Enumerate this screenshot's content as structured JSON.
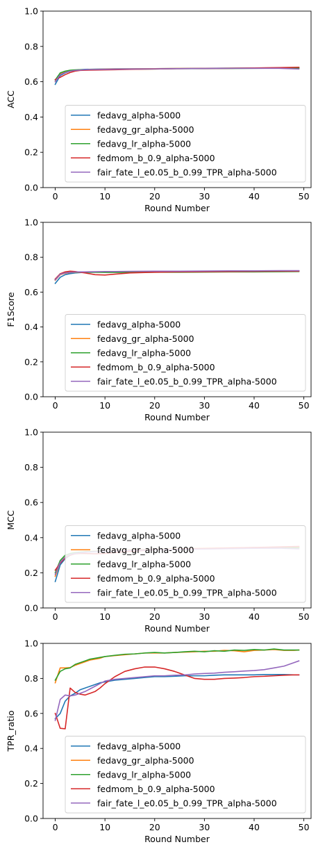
{
  "colors": {
    "fedavg_alpha-5000": "#1f77b4",
    "fedavg_gr_alpha-5000": "#ff7f0e",
    "fedavg_lr_alpha-5000": "#2ca02c",
    "fedmom_b_0.9_alpha-5000": "#d62728",
    "fair_fate_l_e0.05_b_0.99_TPR_alpha-5000": "#9467bd"
  },
  "chart_data": [
    {
      "type": "line",
      "title": "",
      "xlabel": "Round Number",
      "ylabel": "ACC",
      "xlim": [
        -2.45,
        51.45
      ],
      "ylim": [
        0,
        1
      ],
      "xticks": [
        "0",
        "10",
        "20",
        "30",
        "40",
        "50"
      ],
      "yticks": [
        "0.0",
        "0.2",
        "0.4",
        "0.6",
        "0.8",
        "1.0"
      ],
      "grid": false,
      "legend": "lower-right",
      "series": [
        {
          "name": "fedavg_alpha-5000",
          "x": [
            0,
            1,
            2,
            3,
            4,
            5,
            6,
            8,
            10,
            12,
            15,
            20,
            25,
            30,
            35,
            40,
            45,
            49
          ],
          "y": [
            0.585,
            0.635,
            0.65,
            0.66,
            0.665,
            0.668,
            0.67,
            0.671,
            0.672,
            0.673,
            0.673,
            0.674,
            0.675,
            0.676,
            0.677,
            0.678,
            0.678,
            0.678
          ]
        },
        {
          "name": "fedavg_gr_alpha-5000",
          "x": [
            0,
            1,
            2,
            3,
            4,
            5,
            6,
            8,
            10,
            12,
            15,
            20,
            25,
            30,
            35,
            40,
            45,
            49
          ],
          "y": [
            0.6,
            0.645,
            0.655,
            0.662,
            0.665,
            0.667,
            0.668,
            0.67,
            0.671,
            0.672,
            0.673,
            0.674,
            0.675,
            0.675,
            0.677,
            0.677,
            0.678,
            0.678
          ]
        },
        {
          "name": "fedavg_lr_alpha-5000",
          "x": [
            0,
            1,
            2,
            3,
            4,
            5,
            6,
            8,
            10,
            12,
            15,
            20,
            25,
            30,
            35,
            40,
            45,
            49
          ],
          "y": [
            0.61,
            0.65,
            0.66,
            0.665,
            0.667,
            0.668,
            0.668,
            0.669,
            0.669,
            0.67,
            0.671,
            0.672,
            0.674,
            0.674,
            0.675,
            0.676,
            0.677,
            0.677
          ]
        },
        {
          "name": "fedmom_b_0.9_alpha-5000",
          "x": [
            0,
            1,
            2,
            3,
            4,
            5,
            6,
            8,
            10,
            12,
            15,
            20,
            25,
            30,
            35,
            40,
            45,
            49
          ],
          "y": [
            0.612,
            0.625,
            0.64,
            0.652,
            0.66,
            0.664,
            0.665,
            0.666,
            0.667,
            0.668,
            0.67,
            0.672,
            0.674,
            0.675,
            0.676,
            0.678,
            0.68,
            0.682
          ]
        },
        {
          "name": "fair_fate_l_e0.05_b_0.99_TPR_alpha-5000",
          "x": [
            0,
            1,
            2,
            3,
            4,
            5,
            6,
            8,
            10,
            12,
            15,
            20,
            25,
            30,
            35,
            40,
            45,
            49
          ],
          "y": [
            0.6,
            0.64,
            0.652,
            0.66,
            0.664,
            0.666,
            0.668,
            0.669,
            0.67,
            0.671,
            0.672,
            0.673,
            0.674,
            0.675,
            0.676,
            0.676,
            0.676,
            0.672
          ]
        }
      ]
    },
    {
      "type": "line",
      "title": "",
      "xlabel": "Round Number",
      "ylabel": "F1Score",
      "xlim": [
        -2.45,
        51.45
      ],
      "ylim": [
        0,
        1
      ],
      "xticks": [
        "0",
        "10",
        "20",
        "30",
        "40",
        "50"
      ],
      "yticks": [
        "0.0",
        "0.2",
        "0.4",
        "0.6",
        "0.8",
        "1.0"
      ],
      "grid": false,
      "legend": "lower-right",
      "series": [
        {
          "name": "fedavg_alpha-5000",
          "x": [
            0,
            1,
            2,
            3,
            4,
            5,
            6,
            8,
            10,
            12,
            15,
            20,
            25,
            30,
            35,
            40,
            45,
            49
          ],
          "y": [
            0.65,
            0.685,
            0.7,
            0.706,
            0.71,
            0.712,
            0.713,
            0.714,
            0.715,
            0.715,
            0.716,
            0.716,
            0.717,
            0.718,
            0.719,
            0.72,
            0.721,
            0.722
          ]
        },
        {
          "name": "fedavg_gr_alpha-5000",
          "x": [
            0,
            1,
            2,
            3,
            4,
            5,
            6,
            8,
            10,
            12,
            15,
            20,
            25,
            30,
            35,
            40,
            45,
            49
          ],
          "y": [
            0.668,
            0.7,
            0.708,
            0.712,
            0.713,
            0.714,
            0.714,
            0.715,
            0.715,
            0.716,
            0.716,
            0.717,
            0.717,
            0.718,
            0.719,
            0.72,
            0.721,
            0.721
          ]
        },
        {
          "name": "fedavg_lr_alpha-5000",
          "x": [
            0,
            1,
            2,
            3,
            4,
            5,
            6,
            8,
            10,
            12,
            15,
            20,
            25,
            30,
            35,
            40,
            45,
            49
          ],
          "y": [
            0.672,
            0.705,
            0.712,
            0.713,
            0.714,
            0.714,
            0.714,
            0.714,
            0.713,
            0.713,
            0.713,
            0.714,
            0.714,
            0.715,
            0.716,
            0.716,
            0.717,
            0.718
          ]
        },
        {
          "name": "fedmom_b_0.9_alpha-5000",
          "x": [
            0,
            1,
            2,
            3,
            4,
            5,
            6,
            8,
            10,
            12,
            15,
            20,
            25,
            30,
            35,
            40,
            45,
            49
          ],
          "y": [
            0.675,
            0.705,
            0.716,
            0.72,
            0.718,
            0.714,
            0.71,
            0.7,
            0.698,
            0.703,
            0.71,
            0.714,
            0.716,
            0.717,
            0.718,
            0.719,
            0.72,
            0.72
          ]
        },
        {
          "name": "fair_fate_l_e0.05_b_0.99_TPR_alpha-5000",
          "x": [
            0,
            1,
            2,
            3,
            4,
            5,
            6,
            8,
            10,
            12,
            15,
            20,
            25,
            30,
            35,
            40,
            45,
            49
          ],
          "y": [
            0.67,
            0.702,
            0.71,
            0.713,
            0.715,
            0.716,
            0.716,
            0.717,
            0.718,
            0.718,
            0.719,
            0.72,
            0.72,
            0.721,
            0.722,
            0.722,
            0.723,
            0.723
          ]
        }
      ]
    },
    {
      "type": "line",
      "title": "",
      "xlabel": "Round Number",
      "ylabel": "MCC",
      "xlim": [
        -2.45,
        51.45
      ],
      "ylim": [
        0,
        1
      ],
      "xticks": [
        "0",
        "10",
        "20",
        "30",
        "40",
        "50"
      ],
      "yticks": [
        "0.0",
        "0.2",
        "0.4",
        "0.6",
        "0.8",
        "1.0"
      ],
      "grid": false,
      "legend": "lower-right",
      "series": [
        {
          "name": "fedavg_alpha-5000",
          "x": [
            0,
            1,
            2,
            3,
            4,
            5,
            6,
            8,
            10,
            12,
            15,
            20,
            25,
            30,
            35,
            40,
            45,
            49
          ],
          "y": [
            0.15,
            0.245,
            0.28,
            0.3,
            0.31,
            0.315,
            0.318,
            0.322,
            0.325,
            0.327,
            0.33,
            0.333,
            0.336,
            0.338,
            0.34,
            0.342,
            0.343,
            0.344
          ]
        },
        {
          "name": "fedavg_gr_alpha-5000",
          "x": [
            0,
            1,
            2,
            3,
            4,
            5,
            6,
            8,
            10,
            12,
            15,
            20,
            25,
            30,
            35,
            40,
            45,
            49
          ],
          "y": [
            0.18,
            0.26,
            0.29,
            0.305,
            0.312,
            0.316,
            0.32,
            0.323,
            0.326,
            0.328,
            0.331,
            0.334,
            0.336,
            0.339,
            0.341,
            0.343,
            0.345,
            0.346
          ]
        },
        {
          "name": "fedavg_lr_alpha-5000",
          "x": [
            0,
            1,
            2,
            3,
            4,
            5,
            6,
            8,
            10,
            12,
            15,
            20,
            25,
            30,
            35,
            40,
            45,
            49
          ],
          "y": [
            0.2,
            0.27,
            0.3,
            0.31,
            0.315,
            0.318,
            0.32,
            0.322,
            0.324,
            0.326,
            0.328,
            0.331,
            0.334,
            0.336,
            0.338,
            0.34,
            0.341,
            0.342
          ]
        },
        {
          "name": "fedmom_b_0.9_alpha-5000",
          "x": [
            0,
            1,
            2,
            3,
            4,
            5,
            6,
            8,
            10,
            12,
            15,
            20,
            25,
            30,
            35,
            40,
            45,
            49
          ],
          "y": [
            0.215,
            0.255,
            0.285,
            0.3,
            0.308,
            0.31,
            0.31,
            0.308,
            0.31,
            0.315,
            0.322,
            0.33,
            0.335,
            0.338,
            0.341,
            0.344,
            0.347,
            0.35
          ]
        },
        {
          "name": "fair_fate_l_e0.05_b_0.99_TPR_alpha-5000",
          "x": [
            0,
            1,
            2,
            3,
            4,
            5,
            6,
            8,
            10,
            12,
            15,
            20,
            25,
            30,
            35,
            40,
            45,
            49
          ],
          "y": [
            0.19,
            0.26,
            0.29,
            0.304,
            0.31,
            0.314,
            0.317,
            0.32,
            0.323,
            0.325,
            0.328,
            0.331,
            0.333,
            0.335,
            0.337,
            0.339,
            0.34,
            0.336
          ]
        }
      ]
    },
    {
      "type": "line",
      "title": "",
      "xlabel": "Round Number",
      "ylabel": "TPR_ratio",
      "xlim": [
        -2.45,
        51.45
      ],
      "ylim": [
        0,
        1
      ],
      "xticks": [
        "0",
        "10",
        "20",
        "30",
        "40",
        "50"
      ],
      "yticks": [
        "0.0",
        "0.2",
        "0.4",
        "0.6",
        "0.8",
        "1.0"
      ],
      "grid": false,
      "legend": "lower-right",
      "series": [
        {
          "name": "fedavg_alpha-5000",
          "x": [
            0,
            1,
            2,
            3,
            4,
            5,
            6,
            7,
            8,
            9,
            10,
            12,
            14,
            16,
            18,
            20,
            22,
            24,
            26,
            28,
            30,
            32,
            34,
            36,
            38,
            40,
            42,
            44,
            46,
            48,
            49
          ],
          "y": [
            0.57,
            0.6,
            0.67,
            0.7,
            0.715,
            0.735,
            0.745,
            0.755,
            0.765,
            0.775,
            0.78,
            0.79,
            0.795,
            0.8,
            0.805,
            0.81,
            0.81,
            0.812,
            0.815,
            0.815,
            0.815,
            0.818,
            0.82,
            0.82,
            0.82,
            0.82,
            0.822,
            0.822,
            0.822,
            0.82,
            0.82
          ]
        },
        {
          "name": "fedavg_gr_alpha-5000",
          "x": [
            0,
            1,
            2,
            3,
            4,
            5,
            6,
            7,
            8,
            9,
            10,
            12,
            14,
            16,
            18,
            20,
            22,
            24,
            26,
            28,
            30,
            32,
            34,
            36,
            38,
            40,
            42,
            44,
            46,
            48,
            49
          ],
          "y": [
            0.775,
            0.86,
            0.86,
            0.862,
            0.875,
            0.885,
            0.895,
            0.905,
            0.91,
            0.915,
            0.925,
            0.93,
            0.935,
            0.94,
            0.945,
            0.945,
            0.945,
            0.948,
            0.95,
            0.952,
            0.955,
            0.955,
            0.96,
            0.958,
            0.952,
            0.96,
            0.962,
            0.965,
            0.96,
            0.96,
            0.962
          ]
        },
        {
          "name": "fedavg_lr_alpha-5000",
          "x": [
            0,
            1,
            2,
            3,
            4,
            5,
            6,
            7,
            8,
            9,
            10,
            12,
            14,
            16,
            18,
            20,
            22,
            24,
            26,
            28,
            30,
            32,
            34,
            36,
            38,
            40,
            42,
            44,
            46,
            48,
            49
          ],
          "y": [
            0.79,
            0.84,
            0.855,
            0.86,
            0.88,
            0.89,
            0.9,
            0.91,
            0.915,
            0.92,
            0.925,
            0.932,
            0.938,
            0.94,
            0.945,
            0.948,
            0.945,
            0.948,
            0.952,
            0.955,
            0.952,
            0.958,
            0.955,
            0.962,
            0.96,
            0.965,
            0.962,
            0.968,
            0.962,
            0.962,
            0.962
          ]
        },
        {
          "name": "fedmom_b_0.9_alpha-5000",
          "x": [
            0,
            1,
            2,
            3,
            4,
            5,
            6,
            7,
            8,
            9,
            10,
            12,
            14,
            16,
            18,
            20,
            22,
            24,
            26,
            28,
            30,
            32,
            34,
            36,
            38,
            40,
            42,
            44,
            46,
            48,
            49
          ],
          "y": [
            0.6,
            0.515,
            0.512,
            0.745,
            0.72,
            0.71,
            0.705,
            0.715,
            0.725,
            0.745,
            0.77,
            0.81,
            0.84,
            0.855,
            0.865,
            0.865,
            0.855,
            0.84,
            0.82,
            0.8,
            0.795,
            0.795,
            0.8,
            0.802,
            0.805,
            0.81,
            0.812,
            0.815,
            0.818,
            0.82,
            0.82
          ]
        },
        {
          "name": "fair_fate_l_e0.05_b_0.99_TPR_alpha-5000",
          "x": [
            0,
            1,
            2,
            3,
            4,
            5,
            6,
            7,
            8,
            9,
            10,
            12,
            14,
            16,
            18,
            20,
            22,
            24,
            26,
            28,
            30,
            32,
            34,
            36,
            38,
            40,
            42,
            44,
            46,
            48,
            49
          ],
          "y": [
            0.56,
            0.68,
            0.705,
            0.7,
            0.705,
            0.715,
            0.725,
            0.74,
            0.755,
            0.77,
            0.785,
            0.795,
            0.8,
            0.805,
            0.81,
            0.815,
            0.815,
            0.818,
            0.82,
            0.825,
            0.828,
            0.83,
            0.835,
            0.838,
            0.842,
            0.845,
            0.85,
            0.86,
            0.87,
            0.89,
            0.9
          ]
        }
      ]
    }
  ]
}
